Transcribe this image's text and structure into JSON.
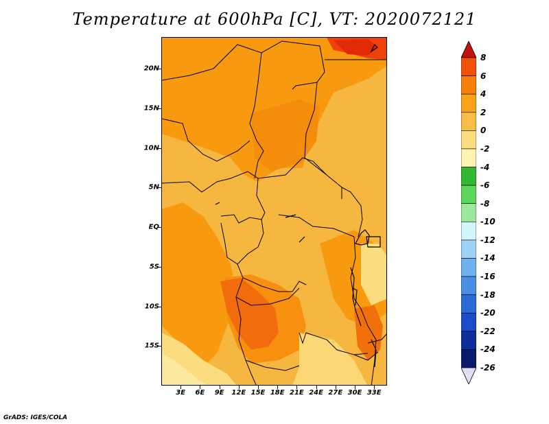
{
  "title": "Temperature at 600hPa [C], VT: 2020072121",
  "credit": "GrADS: IGES/COLA",
  "map": {
    "lat_range": [
      -20,
      24
    ],
    "lon_range": [
      0,
      35
    ],
    "lat_ticks": [
      {
        "value": 20,
        "label": "20N"
      },
      {
        "value": 15,
        "label": "15N"
      },
      {
        "value": 10,
        "label": "10N"
      },
      {
        "value": 5,
        "label": "5N"
      },
      {
        "value": 0,
        "label": "EQ"
      },
      {
        "value": -5,
        "label": "5S"
      },
      {
        "value": -10,
        "label": "10S"
      },
      {
        "value": -15,
        "label": "15S"
      }
    ],
    "lon_ticks": [
      {
        "value": 3,
        "label": "3E"
      },
      {
        "value": 6,
        "label": "6E"
      },
      {
        "value": 9,
        "label": "9E"
      },
      {
        "value": 12,
        "label": "12E"
      },
      {
        "value": 15,
        "label": "15E"
      },
      {
        "value": 18,
        "label": "18E"
      },
      {
        "value": 21,
        "label": "21E"
      },
      {
        "value": 24,
        "label": "24E"
      },
      {
        "value": 27,
        "label": "27E"
      },
      {
        "value": 30,
        "label": "30E"
      },
      {
        "value": 33,
        "label": "33E"
      }
    ]
  },
  "colorbar": {
    "labels": [
      "8",
      "6",
      "4",
      "2",
      "0",
      "-2",
      "-4",
      "-6",
      "-8",
      "-10",
      "-12",
      "-14",
      "-16",
      "-18",
      "-20",
      "-22",
      "-24",
      "-26"
    ],
    "colors": [
      "#dd1a08",
      "#f05208",
      "#f77f0c",
      "#f9a118",
      "#f6bd48",
      "#fbdc7e",
      "#fdf4b4",
      "#34b833",
      "#5cd75c",
      "#9ce89c",
      "#d4f7ff",
      "#9ed2f7",
      "#6db2ee",
      "#4a8fe3",
      "#2a6bd8",
      "#1c4cc8",
      "#0e2e9c",
      "#0a1a6a"
    ],
    "top_arrow_color": "#c4100c",
    "bottom_arrow_color": "#e0e0f4"
  },
  "palette": {
    "warm_orange": "#f79a10",
    "light_orange": "#f6b740",
    "pale_yellow": "#fbdc7e",
    "deep_orange": "#f0600a",
    "red": "#e02a08",
    "border": "#000000"
  }
}
